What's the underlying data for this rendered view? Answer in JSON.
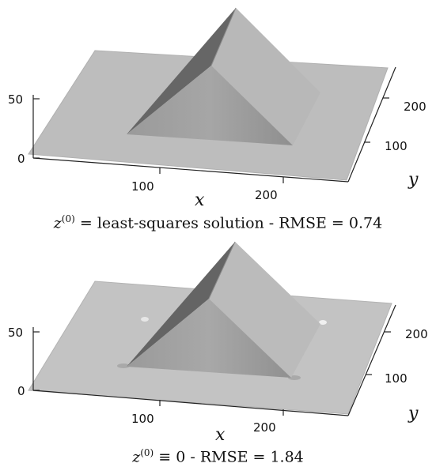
{
  "panels": [
    {
      "caption": {
        "var": "z",
        "sup": "(0)",
        "rel": "=",
        "rest": "least-squares solution - RMSE = 0.74"
      },
      "z_ticks": [
        "50",
        "0"
      ],
      "x_ticks": [
        "100",
        "200"
      ],
      "y_ticks": [
        "200",
        "100"
      ],
      "x_label": "x",
      "y_label": "y"
    },
    {
      "caption": {
        "var": "z",
        "sup": "(0)",
        "rel": "≡",
        "rest": "0 - RMSE = 1.84"
      },
      "z_ticks": [
        "50",
        "0"
      ],
      "x_ticks": [
        "100",
        "200"
      ],
      "y_ticks": [
        "200",
        "100"
      ],
      "x_label": "x",
      "y_label": "y"
    }
  ],
  "colors": {
    "plane": "#bdbdbd",
    "face_left": "#6a6a6a",
    "face_front": "#a2a2a2",
    "face_right": "#bababa",
    "axis": "#222222"
  }
}
